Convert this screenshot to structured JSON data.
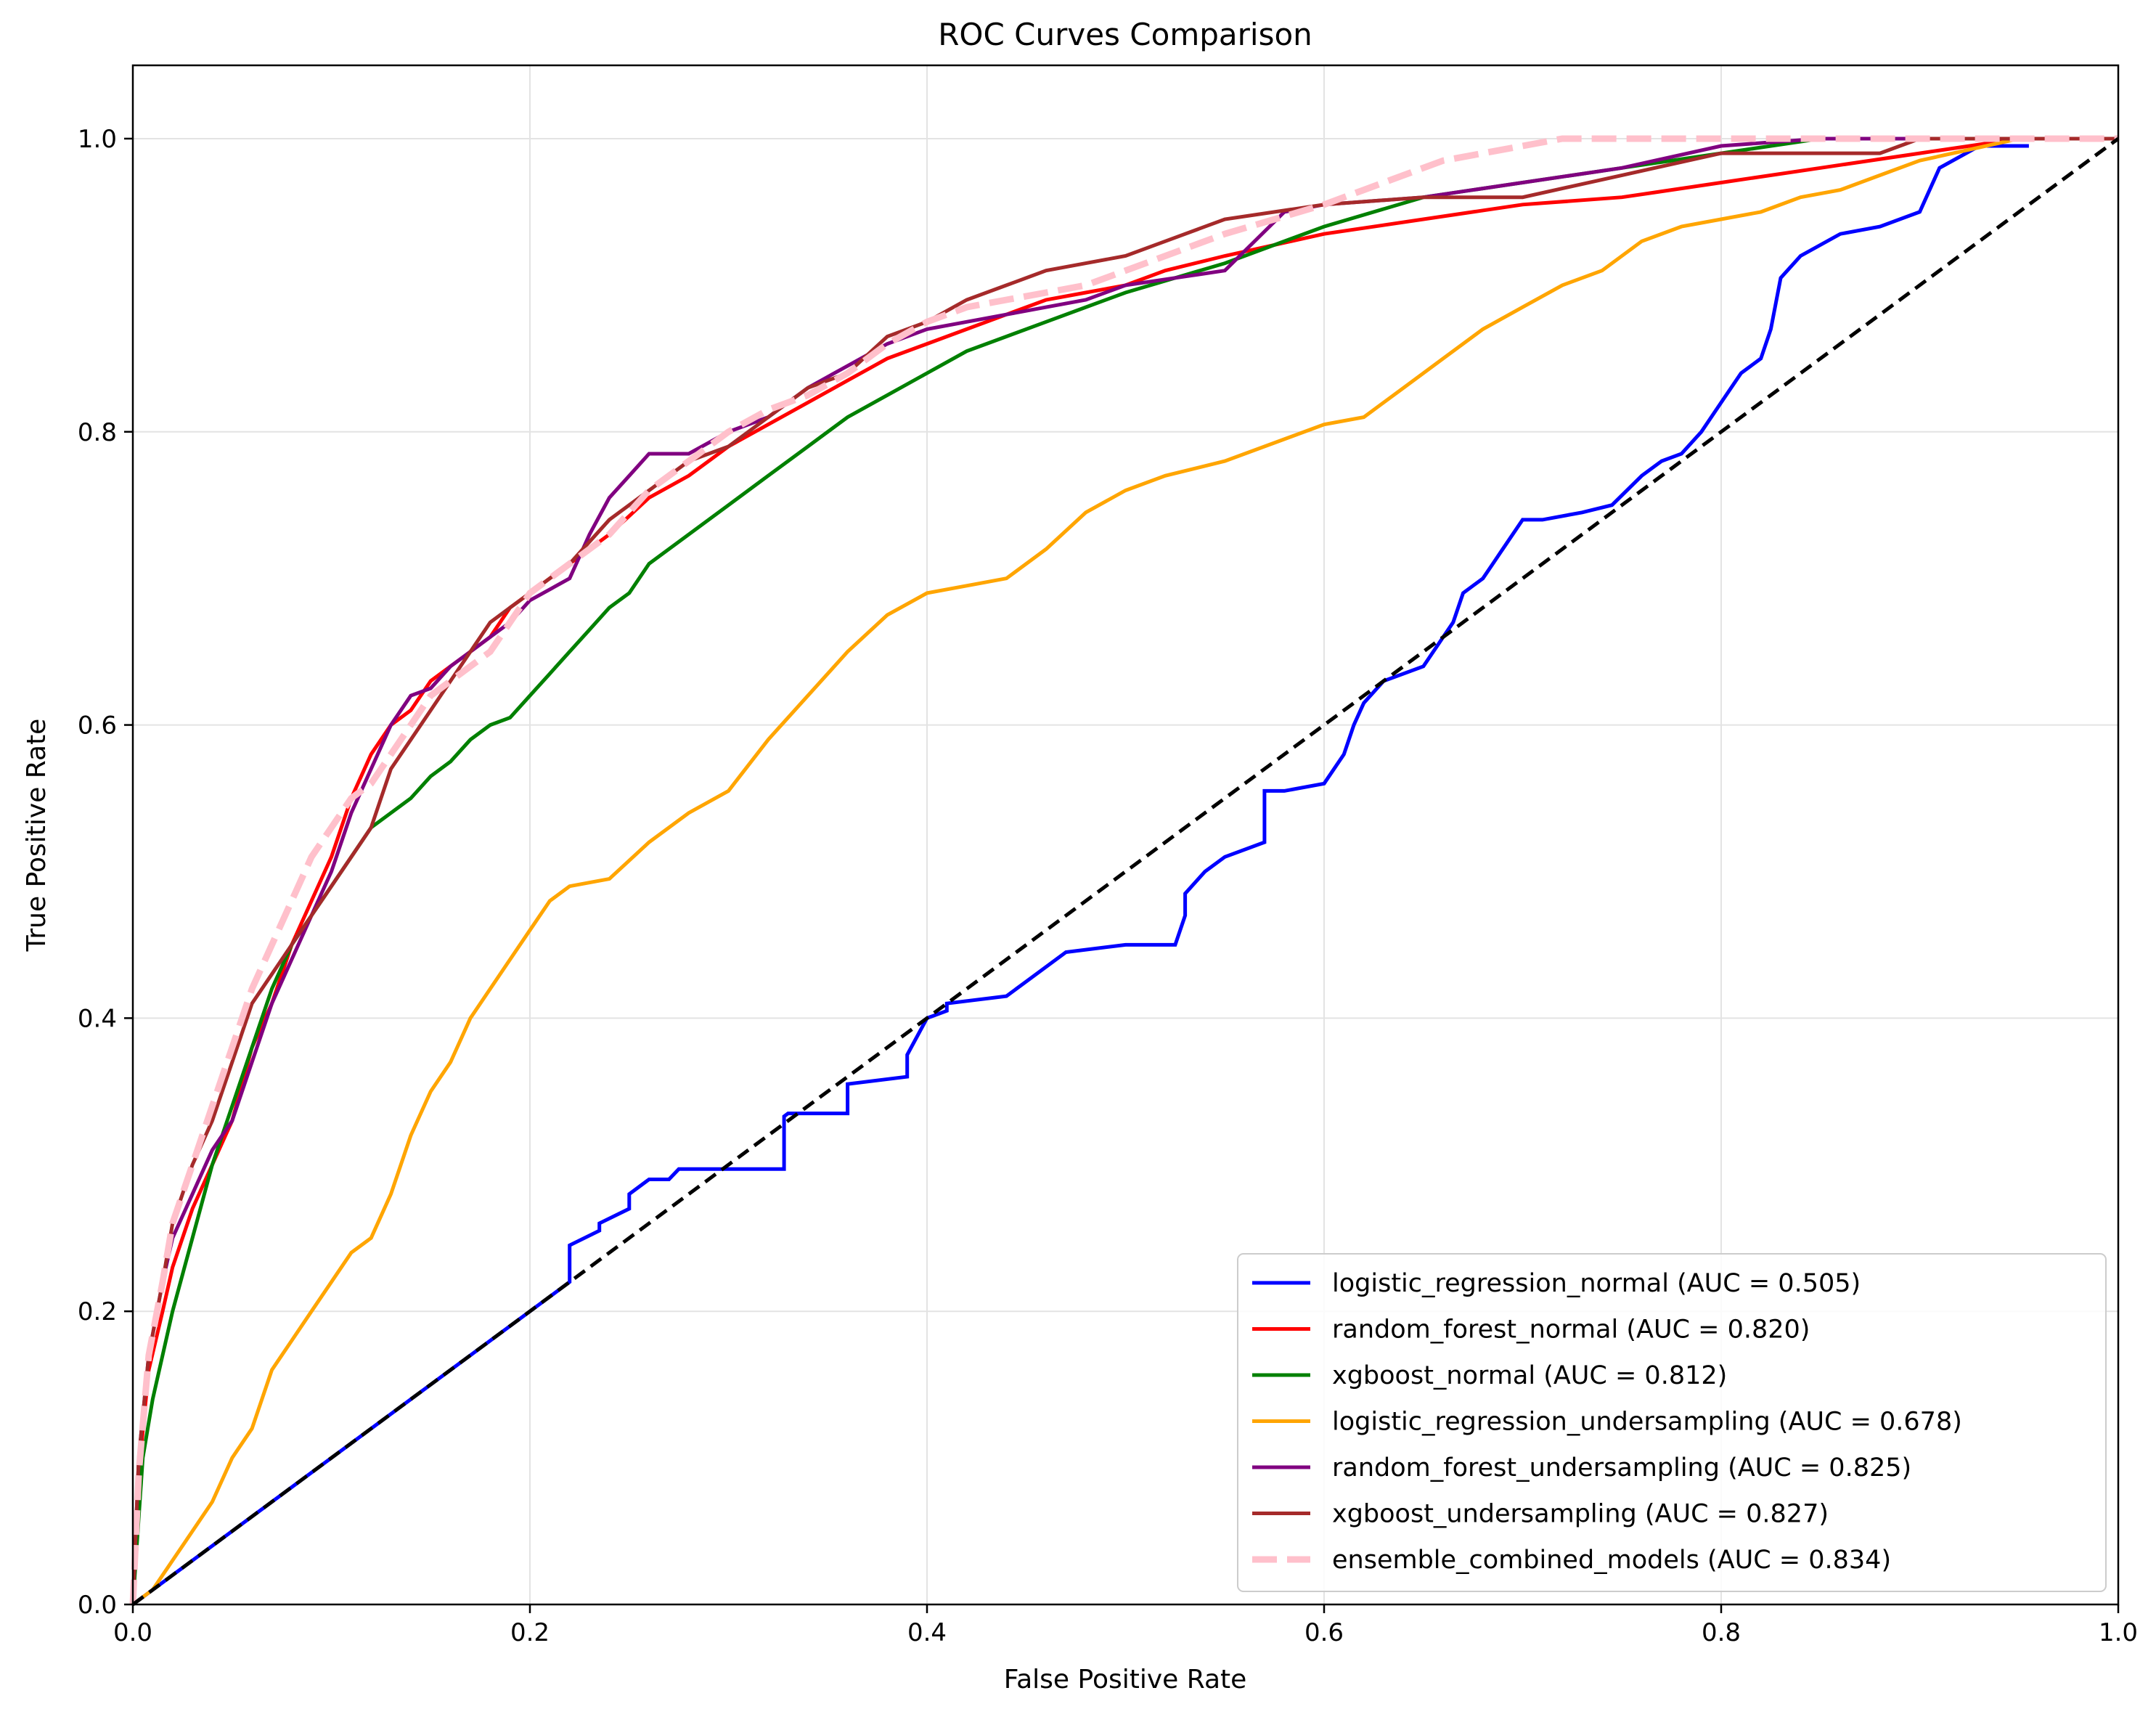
{
  "chart_data": {
    "type": "line",
    "title": "ROC Curves Comparison",
    "xlabel": "False Positive Rate",
    "ylabel": "True Positive Rate",
    "xlim": [
      0.0,
      1.0
    ],
    "ylim": [
      0.0,
      1.05
    ],
    "xticks": [
      0.0,
      0.2,
      0.4,
      0.6,
      0.8,
      1.0
    ],
    "yticks": [
      0.0,
      0.2,
      0.4,
      0.6,
      0.8,
      1.0
    ],
    "xtick_labels": [
      "0.0",
      "0.2",
      "0.4",
      "0.6",
      "0.8",
      "1.0"
    ],
    "ytick_labels": [
      "0.0",
      "0.2",
      "0.4",
      "0.6",
      "0.8",
      "1.0"
    ],
    "grid": true,
    "legend_position": "bottom-right",
    "series": [
      {
        "name": "logistic_regression_normal",
        "label": "logistic_regression_normal (AUC = 0.505)",
        "auc": 0.505,
        "color": "#0000ff",
        "dashed": false,
        "x": [
          0.0,
          0.1,
          0.21,
          0.22,
          0.22,
          0.235,
          0.235,
          0.25,
          0.25,
          0.26,
          0.27,
          0.275,
          0.3,
          0.328,
          0.328,
          0.33,
          0.36,
          0.36,
          0.39,
          0.39,
          0.4,
          0.41,
          0.41,
          0.44,
          0.45,
          0.47,
          0.5,
          0.5,
          0.525,
          0.53,
          0.53,
          0.54,
          0.55,
          0.57,
          0.57,
          0.58,
          0.6,
          0.61,
          0.615,
          0.62,
          0.63,
          0.65,
          0.66,
          0.665,
          0.67,
          0.68,
          0.685,
          0.69,
          0.7,
          0.71,
          0.73,
          0.745,
          0.76,
          0.77,
          0.78,
          0.79,
          0.8,
          0.81,
          0.82,
          0.825,
          0.83,
          0.84,
          0.86,
          0.88,
          0.9,
          0.91,
          0.93,
          0.955
        ],
        "y": [
          0.0,
          0.1,
          0.21,
          0.22,
          0.245,
          0.255,
          0.26,
          0.27,
          0.28,
          0.29,
          0.29,
          0.297,
          0.297,
          0.297,
          0.333,
          0.335,
          0.335,
          0.355,
          0.36,
          0.375,
          0.4,
          0.405,
          0.41,
          0.415,
          0.425,
          0.445,
          0.45,
          0.45,
          0.45,
          0.47,
          0.485,
          0.5,
          0.51,
          0.52,
          0.555,
          0.555,
          0.56,
          0.58,
          0.6,
          0.615,
          0.63,
          0.64,
          0.66,
          0.67,
          0.69,
          0.7,
          0.71,
          0.72,
          0.74,
          0.74,
          0.745,
          0.75,
          0.77,
          0.78,
          0.785,
          0.8,
          0.82,
          0.84,
          0.85,
          0.87,
          0.905,
          0.92,
          0.935,
          0.94,
          0.95,
          0.98,
          0.995,
          0.995
        ]
      },
      {
        "name": "random_forest_normal",
        "label": "random_forest_normal (AUC = 0.820)",
        "auc": 0.82,
        "color": "#ff0000",
        "dashed": false,
        "x": [
          0.0,
          0.003,
          0.008,
          0.015,
          0.02,
          0.03,
          0.04,
          0.05,
          0.06,
          0.07,
          0.08,
          0.09,
          0.1,
          0.11,
          0.12,
          0.13,
          0.14,
          0.15,
          0.16,
          0.17,
          0.18,
          0.19,
          0.2,
          0.22,
          0.24,
          0.26,
          0.28,
          0.3,
          0.32,
          0.34,
          0.36,
          0.38,
          0.4,
          0.42,
          0.44,
          0.46,
          0.48,
          0.5,
          0.52,
          0.55,
          0.6,
          0.65,
          0.7,
          0.75,
          0.8,
          0.85,
          0.9,
          0.95,
          1.0
        ],
        "y": [
          0.0,
          0.09,
          0.16,
          0.2,
          0.23,
          0.27,
          0.3,
          0.33,
          0.38,
          0.41,
          0.45,
          0.48,
          0.51,
          0.55,
          0.58,
          0.6,
          0.61,
          0.63,
          0.64,
          0.65,
          0.66,
          0.68,
          0.69,
          0.71,
          0.73,
          0.755,
          0.77,
          0.79,
          0.805,
          0.82,
          0.835,
          0.85,
          0.86,
          0.87,
          0.88,
          0.89,
          0.895,
          0.9,
          0.91,
          0.92,
          0.935,
          0.945,
          0.955,
          0.96,
          0.97,
          0.98,
          0.99,
          1.0,
          1.0
        ]
      },
      {
        "name": "xgboost_normal",
        "label": "xgboost_normal (AUC = 0.812)",
        "auc": 0.812,
        "color": "#008000",
        "dashed": false,
        "x": [
          0.0,
          0.005,
          0.01,
          0.02,
          0.03,
          0.04,
          0.05,
          0.06,
          0.07,
          0.08,
          0.09,
          0.1,
          0.11,
          0.12,
          0.13,
          0.14,
          0.15,
          0.16,
          0.17,
          0.18,
          0.19,
          0.2,
          0.21,
          0.22,
          0.23,
          0.24,
          0.25,
          0.26,
          0.28,
          0.3,
          0.32,
          0.34,
          0.36,
          0.38,
          0.4,
          0.42,
          0.44,
          0.46,
          0.48,
          0.5,
          0.55,
          0.6,
          0.65,
          0.7,
          0.75,
          0.8,
          0.85,
          0.9,
          0.95,
          1.0
        ],
        "y": [
          0.0,
          0.1,
          0.14,
          0.2,
          0.25,
          0.3,
          0.34,
          0.38,
          0.42,
          0.45,
          0.47,
          0.49,
          0.51,
          0.53,
          0.54,
          0.55,
          0.565,
          0.575,
          0.59,
          0.6,
          0.605,
          0.62,
          0.635,
          0.65,
          0.665,
          0.68,
          0.69,
          0.71,
          0.73,
          0.75,
          0.77,
          0.79,
          0.81,
          0.825,
          0.84,
          0.855,
          0.865,
          0.875,
          0.885,
          0.895,
          0.915,
          0.94,
          0.96,
          0.97,
          0.98,
          0.99,
          1.0,
          1.0,
          1.0,
          1.0
        ]
      },
      {
        "name": "logistic_regression_undersampling",
        "label": "logistic_regression_undersampling (AUC = 0.678)",
        "auc": 0.678,
        "color": "#ffa500",
        "dashed": false,
        "x": [
          0.0,
          0.01,
          0.02,
          0.03,
          0.04,
          0.05,
          0.06,
          0.07,
          0.08,
          0.09,
          0.1,
          0.11,
          0.12,
          0.13,
          0.14,
          0.15,
          0.16,
          0.17,
          0.18,
          0.19,
          0.2,
          0.21,
          0.22,
          0.24,
          0.26,
          0.28,
          0.3,
          0.32,
          0.34,
          0.36,
          0.38,
          0.4,
          0.42,
          0.44,
          0.46,
          0.48,
          0.5,
          0.52,
          0.55,
          0.58,
          0.6,
          0.62,
          0.64,
          0.66,
          0.68,
          0.7,
          0.72,
          0.74,
          0.76,
          0.78,
          0.8,
          0.82,
          0.84,
          0.86,
          0.88,
          0.9,
          0.95,
          1.0
        ],
        "y": [
          0.0,
          0.01,
          0.03,
          0.05,
          0.07,
          0.1,
          0.12,
          0.16,
          0.18,
          0.2,
          0.22,
          0.24,
          0.25,
          0.28,
          0.32,
          0.35,
          0.37,
          0.4,
          0.42,
          0.44,
          0.46,
          0.48,
          0.49,
          0.495,
          0.52,
          0.54,
          0.555,
          0.59,
          0.62,
          0.65,
          0.675,
          0.69,
          0.695,
          0.7,
          0.72,
          0.745,
          0.76,
          0.77,
          0.78,
          0.795,
          0.805,
          0.81,
          0.83,
          0.85,
          0.87,
          0.885,
          0.9,
          0.91,
          0.93,
          0.94,
          0.945,
          0.95,
          0.96,
          0.965,
          0.975,
          0.985,
          1.0,
          1.0
        ]
      },
      {
        "name": "random_forest_undersampling",
        "label": "random_forest_undersampling (AUC = 0.825)",
        "auc": 0.825,
        "color": "#800080",
        "dashed": false,
        "x": [
          0.0,
          0.003,
          0.008,
          0.015,
          0.02,
          0.03,
          0.04,
          0.05,
          0.06,
          0.07,
          0.08,
          0.09,
          0.1,
          0.11,
          0.12,
          0.13,
          0.14,
          0.15,
          0.16,
          0.17,
          0.18,
          0.19,
          0.2,
          0.22,
          0.23,
          0.24,
          0.25,
          0.26,
          0.28,
          0.3,
          0.32,
          0.34,
          0.36,
          0.38,
          0.4,
          0.42,
          0.44,
          0.46,
          0.48,
          0.5,
          0.55,
          0.58,
          0.6,
          0.65,
          0.7,
          0.75,
          0.8,
          0.85,
          0.9,
          0.95,
          1.0
        ],
        "y": [
          0.0,
          0.1,
          0.17,
          0.22,
          0.25,
          0.28,
          0.31,
          0.33,
          0.37,
          0.41,
          0.44,
          0.47,
          0.5,
          0.54,
          0.57,
          0.6,
          0.62,
          0.625,
          0.64,
          0.65,
          0.66,
          0.67,
          0.685,
          0.7,
          0.73,
          0.755,
          0.77,
          0.785,
          0.785,
          0.8,
          0.81,
          0.83,
          0.845,
          0.86,
          0.87,
          0.875,
          0.88,
          0.885,
          0.89,
          0.9,
          0.91,
          0.95,
          0.955,
          0.96,
          0.97,
          0.98,
          0.995,
          1.0,
          1.0,
          1.0,
          1.0
        ]
      },
      {
        "name": "xgboost_undersampling",
        "label": "xgboost_undersampling (AUC = 0.827)",
        "auc": 0.827,
        "color": "#a52a2a",
        "dashed": false,
        "x": [
          0.0,
          0.003,
          0.008,
          0.015,
          0.02,
          0.03,
          0.04,
          0.05,
          0.06,
          0.07,
          0.08,
          0.09,
          0.1,
          0.11,
          0.12,
          0.13,
          0.14,
          0.15,
          0.16,
          0.17,
          0.18,
          0.19,
          0.2,
          0.22,
          0.24,
          0.26,
          0.28,
          0.3,
          0.32,
          0.34,
          0.36,
          0.38,
          0.4,
          0.42,
          0.44,
          0.46,
          0.48,
          0.5,
          0.52,
          0.55,
          0.6,
          0.65,
          0.7,
          0.75,
          0.8,
          0.85,
          0.88,
          0.9,
          0.95,
          1.0
        ],
        "y": [
          0.0,
          0.1,
          0.17,
          0.22,
          0.26,
          0.3,
          0.33,
          0.37,
          0.41,
          0.43,
          0.45,
          0.47,
          0.49,
          0.51,
          0.53,
          0.57,
          0.59,
          0.61,
          0.63,
          0.65,
          0.67,
          0.68,
          0.69,
          0.71,
          0.74,
          0.76,
          0.78,
          0.79,
          0.81,
          0.83,
          0.84,
          0.865,
          0.875,
          0.89,
          0.9,
          0.91,
          0.915,
          0.92,
          0.93,
          0.945,
          0.955,
          0.96,
          0.96,
          0.975,
          0.99,
          0.99,
          0.99,
          1.0,
          1.0,
          1.0
        ]
      },
      {
        "name": "ensemble_combined_models",
        "label": "ensemble_combined_models (AUC = 0.834)",
        "auc": 0.834,
        "color": "#ffc0cb",
        "dashed": true,
        "x": [
          0.0,
          0.003,
          0.008,
          0.015,
          0.02,
          0.03,
          0.04,
          0.05,
          0.06,
          0.07,
          0.08,
          0.09,
          0.1,
          0.11,
          0.12,
          0.13,
          0.14,
          0.15,
          0.16,
          0.17,
          0.18,
          0.19,
          0.2,
          0.22,
          0.24,
          0.26,
          0.28,
          0.3,
          0.32,
          0.34,
          0.36,
          0.38,
          0.4,
          0.42,
          0.44,
          0.46,
          0.48,
          0.5,
          0.55,
          0.6,
          0.62,
          0.64,
          0.66,
          0.68,
          0.7,
          0.72,
          0.75,
          0.8,
          0.9,
          1.0
        ],
        "y": [
          0.0,
          0.09,
          0.17,
          0.22,
          0.26,
          0.3,
          0.34,
          0.38,
          0.42,
          0.45,
          0.48,
          0.51,
          0.53,
          0.55,
          0.56,
          0.58,
          0.6,
          0.62,
          0.63,
          0.64,
          0.65,
          0.67,
          0.69,
          0.71,
          0.73,
          0.76,
          0.78,
          0.8,
          0.815,
          0.825,
          0.84,
          0.86,
          0.875,
          0.885,
          0.89,
          0.895,
          0.9,
          0.91,
          0.935,
          0.955,
          0.965,
          0.975,
          0.985,
          0.99,
          0.995,
          1.0,
          1.0,
          1.0,
          1.0,
          1.0
        ]
      }
    ],
    "reference_line": {
      "name": "chance",
      "x": [
        0.0,
        1.0
      ],
      "y": [
        0.0,
        1.0
      ],
      "color": "#000000",
      "dashed": true
    }
  }
}
